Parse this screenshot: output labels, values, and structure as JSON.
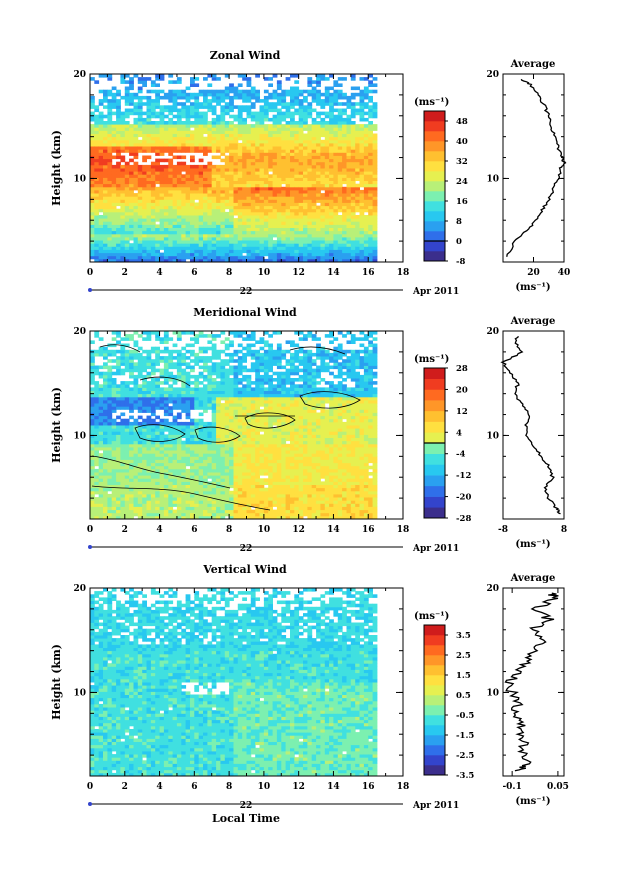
{
  "figure": {
    "xlabel": "Local Time",
    "date_label": "Apr 2011",
    "day_label": "22",
    "unit_label": "(ms⁻¹)",
    "avg_title": "Average"
  },
  "chart_data": [
    {
      "type": "heatmap",
      "title": "Zonal Wind",
      "ylabel": "Height (km)",
      "xlim": [
        0,
        18
      ],
      "ylim": [
        2,
        20
      ],
      "x_ticks": [
        0,
        2,
        4,
        6,
        8,
        10,
        12,
        14,
        16,
        18
      ],
      "y_ticks": [
        10,
        20
      ],
      "data_x_max": 16.3,
      "colorbar": {
        "levels": [
          -8,
          -4,
          0,
          4,
          8,
          12,
          16,
          20,
          24,
          28,
          32,
          36,
          40,
          44,
          48,
          52
        ],
        "labels": [
          -8,
          0,
          8,
          16,
          24,
          32,
          40,
          48
        ],
        "zero_line": 0
      },
      "profile": {
        "title": "Average",
        "xlim": [
          0,
          40
        ],
        "xticks": [
          20,
          40
        ],
        "heights": [
          2.5,
          4,
          5,
          6,
          7,
          8,
          9,
          10,
          11,
          11.5,
          12,
          13,
          14,
          15,
          16,
          17,
          18,
          19,
          19.5
        ],
        "values": [
          2,
          8,
          15,
          22,
          26,
          30,
          33,
          36,
          38,
          40,
          39,
          36,
          34,
          31,
          30,
          27,
          23,
          18,
          12
        ]
      }
    },
    {
      "type": "heatmap",
      "title": "Meridional Wind",
      "ylabel": "Height (km)",
      "xlim": [
        0,
        18
      ],
      "ylim": [
        2,
        20
      ],
      "x_ticks": [
        0,
        2,
        4,
        6,
        8,
        10,
        12,
        14,
        16,
        18
      ],
      "y_ticks": [
        10,
        20
      ],
      "data_x_max": 16.3,
      "colorbar": {
        "levels": [
          -28,
          -24,
          -20,
          -16,
          -12,
          -8,
          -4,
          0,
          4,
          8,
          12,
          16,
          20,
          24,
          28
        ],
        "labels": [
          -28,
          -20,
          -12,
          -4,
          4,
          12,
          20,
          28
        ],
        "zero_line": 0
      },
      "profile": {
        "title": "Average",
        "xlim": [
          -8,
          8
        ],
        "xticks": [
          -8,
          8
        ],
        "heights": [
          2.5,
          3,
          4,
          5,
          6,
          7,
          8,
          9,
          10,
          11,
          12,
          13,
          14,
          15,
          16,
          17,
          18,
          19,
          19.5
        ],
        "values": [
          7,
          6,
          4,
          3,
          5,
          4,
          2,
          0,
          -2,
          -2,
          -1,
          -3,
          -5,
          -4,
          -6,
          -8,
          -3,
          -5,
          -4
        ]
      }
    },
    {
      "type": "heatmap",
      "title": "Vertical Wind",
      "ylabel": "Height (km)",
      "xlim": [
        0,
        18
      ],
      "ylim": [
        2,
        20
      ],
      "x_ticks": [
        0,
        2,
        4,
        6,
        8,
        10,
        12,
        14,
        16,
        18
      ],
      "y_ticks": [
        10,
        20
      ],
      "data_x_max": 16.3,
      "colorbar": {
        "levels": [
          -3.5,
          -3,
          -2.5,
          -2,
          -1.5,
          -1,
          -0.5,
          0,
          0.5,
          1,
          1.5,
          2,
          2.5,
          3,
          3.5,
          4
        ],
        "labels": [
          -3.5,
          -2.5,
          -1.5,
          -0.5,
          0.5,
          1.5,
          2.5,
          3.5
        ],
        "zero_line": null
      },
      "profile": {
        "title": "Average",
        "xlim": [
          -0.13,
          0.07
        ],
        "xticks": [
          -0.1,
          0.05
        ],
        "heights": [
          2.5,
          3,
          4,
          5,
          6,
          7,
          8,
          9,
          10,
          11,
          12,
          13,
          14,
          15,
          16,
          17,
          18,
          19,
          19.5
        ],
        "values": [
          -0.08,
          -0.05,
          -0.07,
          -0.06,
          -0.08,
          -0.07,
          -0.09,
          -0.08,
          -0.1,
          -0.11,
          -0.08,
          -0.05,
          -0.02,
          0.0,
          -0.03,
          0.02,
          -0.02,
          0.04,
          0.03
        ]
      }
    }
  ],
  "colors": {
    "scale": [
      "#3b2e8c",
      "#3344cc",
      "#2f6fea",
      "#2aa0f0",
      "#28c8f0",
      "#40e0e0",
      "#7cf0b0",
      "#b8f078",
      "#e6f050",
      "#ffe040",
      "#ffc030",
      "#ff9628",
      "#ff6a20",
      "#f03c20",
      "#d01c1c"
    ]
  }
}
